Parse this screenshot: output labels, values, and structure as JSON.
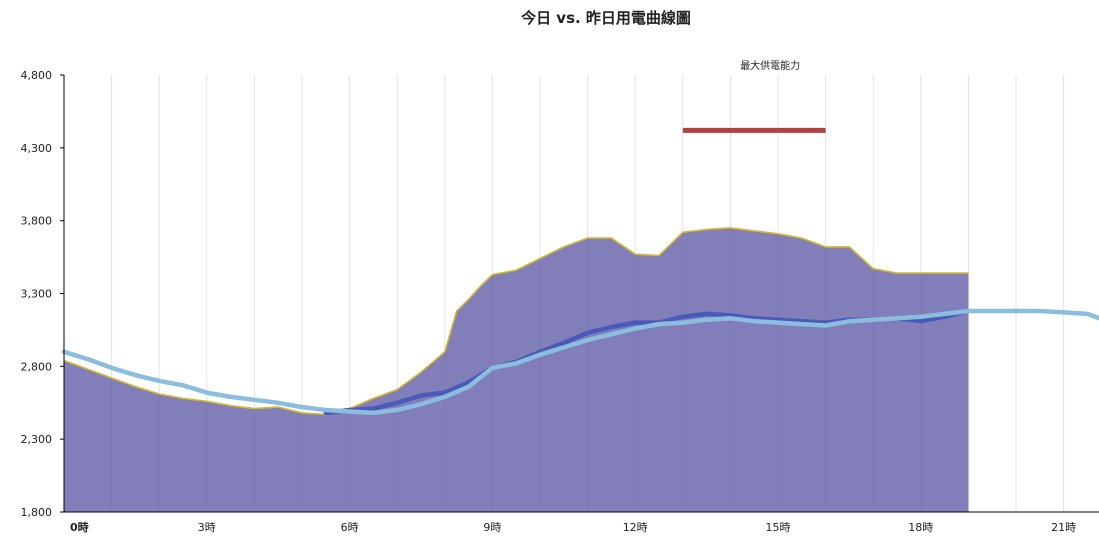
{
  "chart_data": {
    "type": "area",
    "title": "今日 vs. 昨日用電曲線圖",
    "xlabel": "",
    "ylabel": "",
    "ylim": [
      1800,
      4800
    ],
    "y_ticks": [
      "1,800",
      "2,300",
      "2,800",
      "3,300",
      "3,800",
      "4,300",
      "4,800"
    ],
    "y_tick_values": [
      1800,
      2300,
      2800,
      3300,
      3800,
      4300,
      4800
    ],
    "xlim": [
      0,
      21.83
    ],
    "x_ticks": [
      "0時",
      "3時",
      "6時",
      "9時",
      "12時",
      "15時",
      "18時",
      "21時"
    ],
    "x_tick_values": [
      0,
      3,
      6,
      9,
      12,
      15,
      18,
      21
    ],
    "grid_x": true,
    "annotation": {
      "label": "最大供電能力",
      "x_start": 13,
      "x_end": 16,
      "value": 4420,
      "color": "#b0413e"
    },
    "series": [
      {
        "kind": "area",
        "color": "#5e5aa6",
        "edge_color": "#d4b531",
        "x": [
          0,
          0.5,
          1,
          1.5,
          2,
          2.5,
          3,
          3.5,
          4,
          4.5,
          5,
          5.5,
          6,
          6.5,
          7,
          7.5,
          8,
          8.25,
          8.5,
          8.75,
          9,
          9.5,
          10,
          10.5,
          11,
          11.5,
          12,
          12.5,
          13,
          13.5,
          14,
          14.5,
          15,
          15.5,
          16,
          16.5,
          17,
          17.5,
          18,
          18.5,
          19
        ],
        "values": [
          2840,
          2780,
          2720,
          2660,
          2610,
          2580,
          2560,
          2530,
          2510,
          2520,
          2480,
          2470,
          2510,
          2580,
          2640,
          2760,
          2900,
          3180,
          3260,
          3350,
          3430,
          3460,
          3540,
          3620,
          3680,
          3680,
          3570,
          3560,
          3720,
          3740,
          3750,
          3730,
          3710,
          3680,
          3620,
          3620,
          3470,
          3440,
          3440,
          3440,
          3440
        ]
      },
      {
        "kind": "line",
        "color": "#4a5ab8",
        "x": [
          5.5,
          6,
          6.5,
          7,
          7.5,
          8,
          8.5,
          9,
          9.5,
          10,
          10.5,
          11,
          11.5,
          12,
          12.5,
          13,
          13.5,
          14,
          14.5,
          15,
          15.5,
          16,
          16.5,
          17,
          17.5,
          18,
          18.5,
          19
        ],
        "values": [
          2480,
          2500,
          2510,
          2550,
          2600,
          2620,
          2690,
          2790,
          2830,
          2900,
          2960,
          3030,
          3070,
          3100,
          3100,
          3140,
          3160,
          3150,
          3130,
          3120,
          3110,
          3100,
          3120,
          3120,
          3130,
          3110,
          3140,
          3180
        ]
      },
      {
        "kind": "line",
        "color": "#8bbdde",
        "x": [
          0,
          0.5,
          1,
          1.5,
          2,
          2.5,
          3,
          3.5,
          4,
          4.5,
          5,
          5.5,
          6,
          6.5,
          7,
          7.5,
          8,
          8.5,
          9,
          9.5,
          10,
          10.5,
          11,
          11.5,
          12,
          12.5,
          13,
          13.5,
          14,
          14.5,
          15,
          15.5,
          16,
          16.5,
          17,
          17.5,
          18,
          18.5,
          19,
          19.5,
          20,
          20.5,
          21,
          21.5,
          21.83
        ],
        "values": [
          2900,
          2850,
          2790,
          2740,
          2700,
          2670,
          2620,
          2590,
          2570,
          2550,
          2520,
          2500,
          2490,
          2480,
          2500,
          2540,
          2590,
          2660,
          2790,
          2820,
          2880,
          2930,
          2980,
          3020,
          3060,
          3090,
          3100,
          3120,
          3130,
          3110,
          3100,
          3090,
          3080,
          3110,
          3120,
          3130,
          3140,
          3160,
          3180,
          3180,
          3180,
          3180,
          3170,
          3160,
          3120
        ]
      }
    ]
  }
}
